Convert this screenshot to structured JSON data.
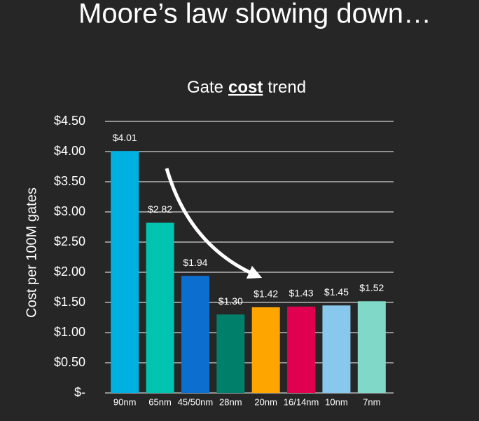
{
  "page_title": "Moore’s law slowing down…",
  "chart_data": {
    "type": "bar",
    "title": [
      "Gate",
      "cost",
      "trend"
    ],
    "title_emphasis": 1,
    "y_label": "Cost per 100M gates",
    "categories": [
      "90nm",
      "65nm",
      "45/50nm",
      "28nm",
      "20nm",
      "16/14nm",
      "10nm",
      "7nm"
    ],
    "values": [
      4.01,
      2.82,
      1.94,
      1.3,
      1.42,
      1.43,
      1.45,
      1.52
    ],
    "value_labels": [
      "$4.01",
      "$2.82",
      "$1.94",
      "$1.30",
      "$1.42",
      "$1.43",
      "$1.45",
      "$1.52"
    ],
    "colors": [
      "#00b0e0",
      "#00c4b0",
      "#0c6fd0",
      "#00806a",
      "#ffa500",
      "#e0004f",
      "#88c8ec",
      "#7fd8c8"
    ],
    "ylim": [
      0,
      4.5
    ],
    "yticks": [
      {
        "value": 0,
        "label": "$-"
      },
      {
        "value": 0.5,
        "label": "$0.50"
      },
      {
        "value": 1,
        "label": "$1.00"
      },
      {
        "value": 1.5,
        "label": "$1.50"
      },
      {
        "value": 2,
        "label": "$2.00"
      },
      {
        "value": 2.5,
        "label": "$2.50"
      },
      {
        "value": 3,
        "label": "$3.00"
      },
      {
        "value": 3.5,
        "label": "$3.50"
      },
      {
        "value": 4,
        "label": "$4.00"
      },
      {
        "value": 4.5,
        "label": "$4.50"
      }
    ],
    "grid": true
  }
}
